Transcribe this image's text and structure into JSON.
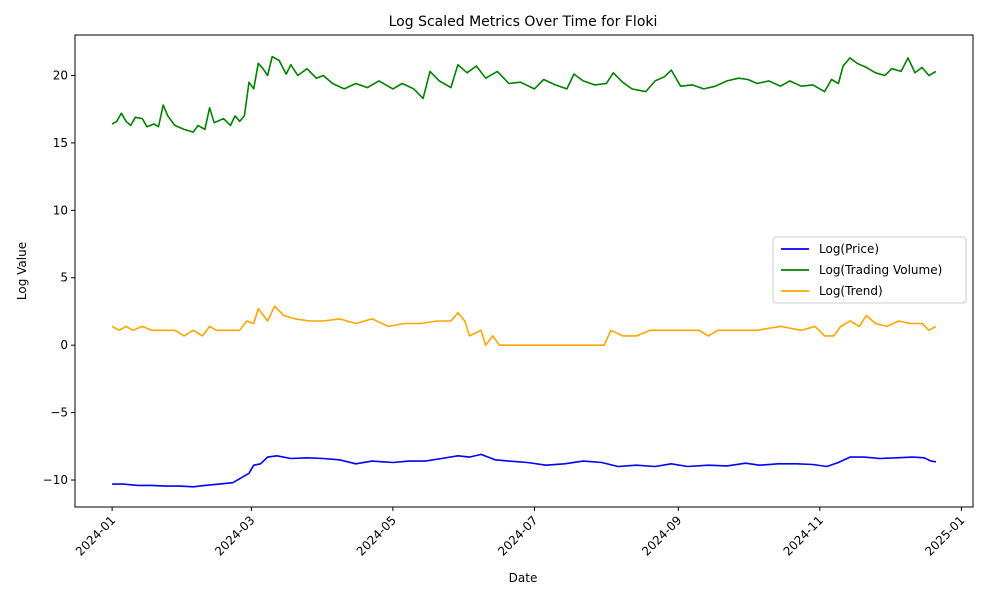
{
  "chart_data": {
    "type": "line",
    "title": "Log Scaled Metrics Over Time for Floki",
    "xlabel": "Date",
    "ylabel": "Log Value",
    "xlim": [
      "2023-12-16",
      "2025-01-06"
    ],
    "ylim": [
      -12,
      23
    ],
    "x_ticks": [
      {
        "date": "2024-01-01",
        "label": "2024-01"
      },
      {
        "date": "2024-03-01",
        "label": "2024-03"
      },
      {
        "date": "2024-05-01",
        "label": "2024-05"
      },
      {
        "date": "2024-07-01",
        "label": "2024-07"
      },
      {
        "date": "2024-09-01",
        "label": "2024-09"
      },
      {
        "date": "2024-11-01",
        "label": "2024-11"
      },
      {
        "date": "2025-01-01",
        "label": "2025-01"
      }
    ],
    "y_ticks": [
      -10,
      -5,
      0,
      5,
      10,
      15,
      20
    ],
    "grid": false,
    "legend_position": "center-right",
    "series": [
      {
        "name": "Log(Price)",
        "color": "#0000ff",
        "points": [
          [
            "2024-01-01",
            -10.3
          ],
          [
            "2024-01-06",
            -10.3
          ],
          [
            "2024-01-12",
            -10.4
          ],
          [
            "2024-01-18",
            -10.4
          ],
          [
            "2024-01-24",
            -10.45
          ],
          [
            "2024-01-30",
            -10.45
          ],
          [
            "2024-02-05",
            -10.5
          ],
          [
            "2024-02-10",
            -10.4
          ],
          [
            "2024-02-16",
            -10.3
          ],
          [
            "2024-02-22",
            -10.2
          ],
          [
            "2024-02-26",
            -9.8
          ],
          [
            "2024-02-29",
            -9.5
          ],
          [
            "2024-03-02",
            -8.9
          ],
          [
            "2024-03-05",
            -8.8
          ],
          [
            "2024-03-08",
            -8.3
          ],
          [
            "2024-03-12",
            -8.2
          ],
          [
            "2024-03-18",
            -8.4
          ],
          [
            "2024-03-25",
            -8.35
          ],
          [
            "2024-04-01",
            -8.4
          ],
          [
            "2024-04-08",
            -8.5
          ],
          [
            "2024-04-15",
            -8.8
          ],
          [
            "2024-04-22",
            -8.6
          ],
          [
            "2024-05-01",
            -8.7
          ],
          [
            "2024-05-08",
            -8.6
          ],
          [
            "2024-05-15",
            -8.6
          ],
          [
            "2024-05-22",
            -8.4
          ],
          [
            "2024-05-29",
            -8.2
          ],
          [
            "2024-06-03",
            -8.3
          ],
          [
            "2024-06-08",
            -8.1
          ],
          [
            "2024-06-14",
            -8.5
          ],
          [
            "2024-06-20",
            -8.6
          ],
          [
            "2024-06-28",
            -8.7
          ],
          [
            "2024-07-06",
            -8.9
          ],
          [
            "2024-07-14",
            -8.8
          ],
          [
            "2024-07-22",
            -8.6
          ],
          [
            "2024-07-30",
            -8.7
          ],
          [
            "2024-08-06",
            -9.0
          ],
          [
            "2024-08-14",
            -8.9
          ],
          [
            "2024-08-22",
            -9.0
          ],
          [
            "2024-08-29",
            -8.8
          ],
          [
            "2024-09-05",
            -9.0
          ],
          [
            "2024-09-14",
            -8.9
          ],
          [
            "2024-09-22",
            -8.95
          ],
          [
            "2024-09-30",
            -8.75
          ],
          [
            "2024-10-06",
            -8.9
          ],
          [
            "2024-10-14",
            -8.8
          ],
          [
            "2024-10-22",
            -8.8
          ],
          [
            "2024-10-29",
            -8.85
          ],
          [
            "2024-11-04",
            -9.0
          ],
          [
            "2024-11-09",
            -8.7
          ],
          [
            "2024-11-14",
            -8.3
          ],
          [
            "2024-11-20",
            -8.3
          ],
          [
            "2024-11-27",
            -8.4
          ],
          [
            "2024-12-04",
            -8.35
          ],
          [
            "2024-12-11",
            -8.3
          ],
          [
            "2024-12-16",
            -8.35
          ],
          [
            "2024-12-19",
            -8.6
          ],
          [
            "2024-12-21",
            -8.65
          ]
        ]
      },
      {
        "name": "Log(Trading Volume)",
        "color": "#008000",
        "points": [
          [
            "2024-01-01",
            16.4
          ],
          [
            "2024-01-03",
            16.6
          ],
          [
            "2024-01-05",
            17.2
          ],
          [
            "2024-01-07",
            16.6
          ],
          [
            "2024-01-09",
            16.3
          ],
          [
            "2024-01-11",
            16.9
          ],
          [
            "2024-01-14",
            16.8
          ],
          [
            "2024-01-16",
            16.2
          ],
          [
            "2024-01-19",
            16.4
          ],
          [
            "2024-01-21",
            16.2
          ],
          [
            "2024-01-23",
            17.8
          ],
          [
            "2024-01-25",
            17.0
          ],
          [
            "2024-01-28",
            16.3
          ],
          [
            "2024-02-01",
            16.0
          ],
          [
            "2024-02-05",
            15.8
          ],
          [
            "2024-02-07",
            16.3
          ],
          [
            "2024-02-10",
            16.0
          ],
          [
            "2024-02-12",
            17.6
          ],
          [
            "2024-02-14",
            16.5
          ],
          [
            "2024-02-18",
            16.8
          ],
          [
            "2024-02-21",
            16.3
          ],
          [
            "2024-02-23",
            17.0
          ],
          [
            "2024-02-25",
            16.6
          ],
          [
            "2024-02-27",
            17.0
          ],
          [
            "2024-02-29",
            19.5
          ],
          [
            "2024-03-02",
            19.0
          ],
          [
            "2024-03-04",
            20.9
          ],
          [
            "2024-03-06",
            20.5
          ],
          [
            "2024-03-08",
            20.0
          ],
          [
            "2024-03-10",
            21.4
          ],
          [
            "2024-03-13",
            21.1
          ],
          [
            "2024-03-16",
            20.1
          ],
          [
            "2024-03-18",
            20.8
          ],
          [
            "2024-03-21",
            20.0
          ],
          [
            "2024-03-25",
            20.5
          ],
          [
            "2024-03-29",
            19.8
          ],
          [
            "2024-04-01",
            20.0
          ],
          [
            "2024-04-05",
            19.4
          ],
          [
            "2024-04-10",
            19.0
          ],
          [
            "2024-04-15",
            19.4
          ],
          [
            "2024-04-20",
            19.1
          ],
          [
            "2024-04-25",
            19.6
          ],
          [
            "2024-05-01",
            19.0
          ],
          [
            "2024-05-05",
            19.4
          ],
          [
            "2024-05-10",
            19.0
          ],
          [
            "2024-05-14",
            18.3
          ],
          [
            "2024-05-17",
            20.3
          ],
          [
            "2024-05-21",
            19.6
          ],
          [
            "2024-05-26",
            19.1
          ],
          [
            "2024-05-29",
            20.8
          ],
          [
            "2024-06-02",
            20.2
          ],
          [
            "2024-06-06",
            20.7
          ],
          [
            "2024-06-10",
            19.8
          ],
          [
            "2024-06-15",
            20.3
          ],
          [
            "2024-06-20",
            19.4
          ],
          [
            "2024-06-25",
            19.5
          ],
          [
            "2024-07-01",
            19.0
          ],
          [
            "2024-07-05",
            19.7
          ],
          [
            "2024-07-10",
            19.3
          ],
          [
            "2024-07-15",
            19.0
          ],
          [
            "2024-07-18",
            20.1
          ],
          [
            "2024-07-22",
            19.6
          ],
          [
            "2024-07-27",
            19.3
          ],
          [
            "2024-08-01",
            19.4
          ],
          [
            "2024-08-04",
            20.2
          ],
          [
            "2024-08-08",
            19.5
          ],
          [
            "2024-08-12",
            19.0
          ],
          [
            "2024-08-18",
            18.8
          ],
          [
            "2024-08-22",
            19.6
          ],
          [
            "2024-08-26",
            19.9
          ],
          [
            "2024-08-29",
            20.4
          ],
          [
            "2024-09-02",
            19.2
          ],
          [
            "2024-09-07",
            19.3
          ],
          [
            "2024-09-12",
            19.0
          ],
          [
            "2024-09-17",
            19.2
          ],
          [
            "2024-09-22",
            19.6
          ],
          [
            "2024-09-27",
            19.8
          ],
          [
            "2024-10-01",
            19.7
          ],
          [
            "2024-10-05",
            19.4
          ],
          [
            "2024-10-10",
            19.6
          ],
          [
            "2024-10-15",
            19.2
          ],
          [
            "2024-10-19",
            19.6
          ],
          [
            "2024-10-24",
            19.2
          ],
          [
            "2024-10-29",
            19.3
          ],
          [
            "2024-11-03",
            18.8
          ],
          [
            "2024-11-06",
            19.7
          ],
          [
            "2024-11-09",
            19.4
          ],
          [
            "2024-11-11",
            20.7
          ],
          [
            "2024-11-14",
            21.3
          ],
          [
            "2024-11-17",
            20.9
          ],
          [
            "2024-11-21",
            20.6
          ],
          [
            "2024-11-25",
            20.2
          ],
          [
            "2024-11-29",
            20.0
          ],
          [
            "2024-12-02",
            20.5
          ],
          [
            "2024-12-06",
            20.3
          ],
          [
            "2024-12-09",
            21.3
          ],
          [
            "2024-12-12",
            20.2
          ],
          [
            "2024-12-15",
            20.6
          ],
          [
            "2024-12-18",
            20.0
          ],
          [
            "2024-12-21",
            20.3
          ]
        ]
      },
      {
        "name": "Log(Trend)",
        "color": "#ffa500",
        "points": [
          [
            "2024-01-01",
            1.39
          ],
          [
            "2024-01-04",
            1.1
          ],
          [
            "2024-01-07",
            1.39
          ],
          [
            "2024-01-10",
            1.1
          ],
          [
            "2024-01-14",
            1.39
          ],
          [
            "2024-01-18",
            1.1
          ],
          [
            "2024-01-28",
            1.1
          ],
          [
            "2024-02-01",
            0.69
          ],
          [
            "2024-02-05",
            1.1
          ],
          [
            "2024-02-09",
            0.69
          ],
          [
            "2024-02-12",
            1.39
          ],
          [
            "2024-02-15",
            1.1
          ],
          [
            "2024-02-25",
            1.1
          ],
          [
            "2024-02-28",
            1.79
          ],
          [
            "2024-03-02",
            1.61
          ],
          [
            "2024-03-04",
            2.71
          ],
          [
            "2024-03-08",
            1.79
          ],
          [
            "2024-03-11",
            2.89
          ],
          [
            "2024-03-15",
            2.2
          ],
          [
            "2024-03-20",
            1.95
          ],
          [
            "2024-03-26",
            1.79
          ],
          [
            "2024-04-01",
            1.79
          ],
          [
            "2024-04-08",
            1.95
          ],
          [
            "2024-04-15",
            1.61
          ],
          [
            "2024-04-22",
            1.95
          ],
          [
            "2024-04-29",
            1.39
          ],
          [
            "2024-05-06",
            1.61
          ],
          [
            "2024-05-13",
            1.61
          ],
          [
            "2024-05-20",
            1.79
          ],
          [
            "2024-05-26",
            1.79
          ],
          [
            "2024-05-29",
            2.4
          ],
          [
            "2024-06-01",
            1.79
          ],
          [
            "2024-06-03",
            0.69
          ],
          [
            "2024-06-08",
            1.1
          ],
          [
            "2024-06-10",
            0.0
          ],
          [
            "2024-06-13",
            0.69
          ],
          [
            "2024-06-16",
            0.0
          ],
          [
            "2024-07-31",
            0.0
          ],
          [
            "2024-08-03",
            1.1
          ],
          [
            "2024-08-08",
            0.69
          ],
          [
            "2024-08-14",
            0.69
          ],
          [
            "2024-08-20",
            1.1
          ],
          [
            "2024-08-27",
            1.1
          ],
          [
            "2024-09-02",
            1.1
          ],
          [
            "2024-09-10",
            1.1
          ],
          [
            "2024-09-14",
            0.69
          ],
          [
            "2024-09-18",
            1.1
          ],
          [
            "2024-09-26",
            1.1
          ],
          [
            "2024-10-05",
            1.1
          ],
          [
            "2024-10-15",
            1.39
          ],
          [
            "2024-10-24",
            1.1
          ],
          [
            "2024-10-30",
            1.39
          ],
          [
            "2024-11-03",
            0.69
          ],
          [
            "2024-11-07",
            0.69
          ],
          [
            "2024-11-10",
            1.39
          ],
          [
            "2024-11-14",
            1.79
          ],
          [
            "2024-11-18",
            1.39
          ],
          [
            "2024-11-21",
            2.2
          ],
          [
            "2024-11-25",
            1.61
          ],
          [
            "2024-11-30",
            1.39
          ],
          [
            "2024-12-05",
            1.79
          ],
          [
            "2024-12-10",
            1.61
          ],
          [
            "2024-12-15",
            1.61
          ],
          [
            "2024-12-18",
            1.1
          ],
          [
            "2024-12-21",
            1.39
          ]
        ]
      }
    ]
  }
}
